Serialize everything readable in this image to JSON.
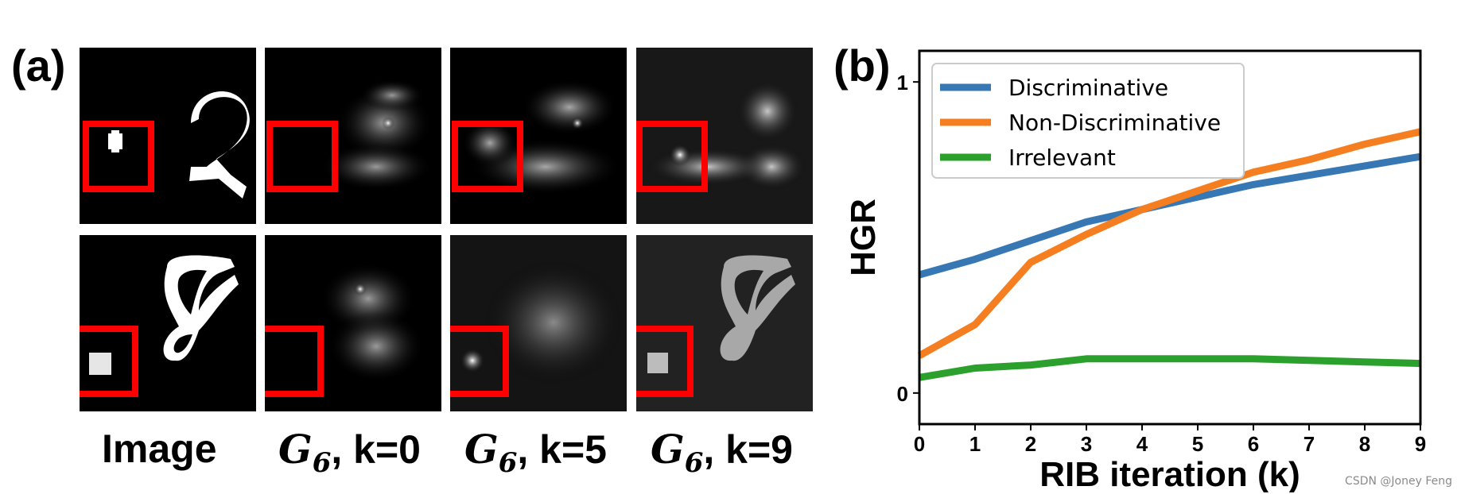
{
  "panel_a": {
    "label": "(a)",
    "captions": [
      {
        "text": "Image"
      },
      {
        "symbol": "G",
        "subscript": "6",
        "suffix": ", k=0"
      },
      {
        "symbol": "G",
        "subscript": "6",
        "suffix": ", k=5"
      },
      {
        "symbol": "G",
        "subscript": "6",
        "suffix": ", k=9"
      }
    ]
  },
  "panel_b": {
    "label": "(b)"
  },
  "chart_data": {
    "type": "line",
    "xlabel": "RIB iteration (k)",
    "ylabel": "HGR",
    "x": [
      0,
      1,
      2,
      3,
      4,
      5,
      6,
      7,
      8,
      9
    ],
    "xlim": [
      0,
      9
    ],
    "ylim": [
      -0.1,
      1.1
    ],
    "x_ticks": [
      "0",
      "1",
      "2",
      "3",
      "4",
      "5",
      "6",
      "7",
      "8",
      "9"
    ],
    "y_ticks": [
      {
        "value": 0,
        "label": "0"
      },
      {
        "value": 1,
        "label": "1"
      }
    ],
    "grid": false,
    "legend_position": "top-left",
    "series": [
      {
        "name": "Discriminative",
        "color": "#3778b4",
        "values": [
          0.38,
          0.43,
          0.49,
          0.55,
          0.59,
          0.63,
          0.67,
          0.7,
          0.73,
          0.76
        ]
      },
      {
        "name": "Non-Discriminative",
        "color": "#f57f20",
        "values": [
          0.12,
          0.22,
          0.42,
          0.51,
          0.59,
          0.65,
          0.71,
          0.75,
          0.8,
          0.84
        ]
      },
      {
        "name": "Irrelevant",
        "color": "#2ca02c",
        "values": [
          0.05,
          0.08,
          0.09,
          0.11,
          0.11,
          0.11,
          0.11,
          0.105,
          0.1,
          0.095
        ]
      }
    ]
  },
  "watermark": "CSDN @Joney Feng"
}
